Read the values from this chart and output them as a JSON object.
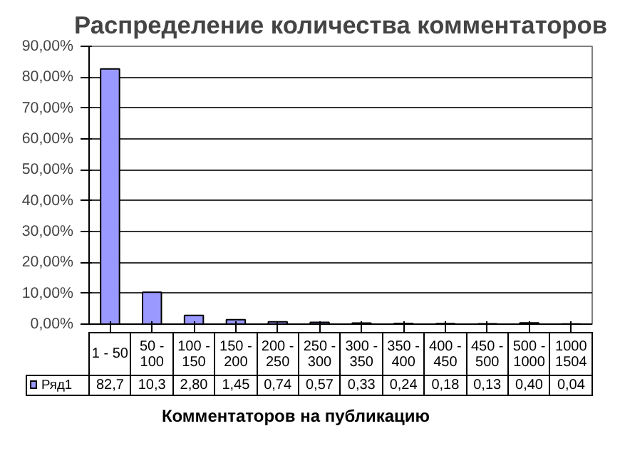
{
  "chart_data": {
    "type": "bar",
    "title": "Распределение количества комментаторов",
    "xlabel": "Комментаторов на публикацию",
    "categories": [
      "1 - 50",
      "50 - 100",
      "100 - 150",
      "150 - 200",
      "200 - 250",
      "250 - 300",
      "300 - 350",
      "350 - 400",
      "400 - 450",
      "450 - 500",
      "500 - 1000",
      "1000 1504"
    ],
    "series": [
      {
        "name": "Ряд1",
        "color": "#9999ff",
        "values": [
          82.7,
          10.3,
          2.8,
          1.45,
          0.74,
          0.57,
          0.33,
          0.24,
          0.18,
          0.13,
          0.4,
          0.04
        ],
        "value_labels": [
          "82,7",
          "10,3",
          "2,80",
          "1,45",
          "0,74",
          "0,57",
          "0,33",
          "0,24",
          "0,18",
          "0,13",
          "0,40",
          "0,04"
        ]
      }
    ],
    "ylim": [
      0,
      90
    ],
    "yticks": [
      {
        "value": 0,
        "label": "0,00%"
      },
      {
        "value": 10,
        "label": "10,00%"
      },
      {
        "value": 20,
        "label": "20,00%"
      },
      {
        "value": 30,
        "label": "30,00%"
      },
      {
        "value": 40,
        "label": "40,00%"
      },
      {
        "value": 50,
        "label": "50,00%"
      },
      {
        "value": 60,
        "label": "60,00%"
      },
      {
        "value": 70,
        "label": "70,00%"
      },
      {
        "value": 80,
        "label": "80,00%"
      },
      {
        "value": 90,
        "label": "90,00%"
      }
    ],
    "grid": "y",
    "legend": "bottom left",
    "tick_labels": "y"
  }
}
